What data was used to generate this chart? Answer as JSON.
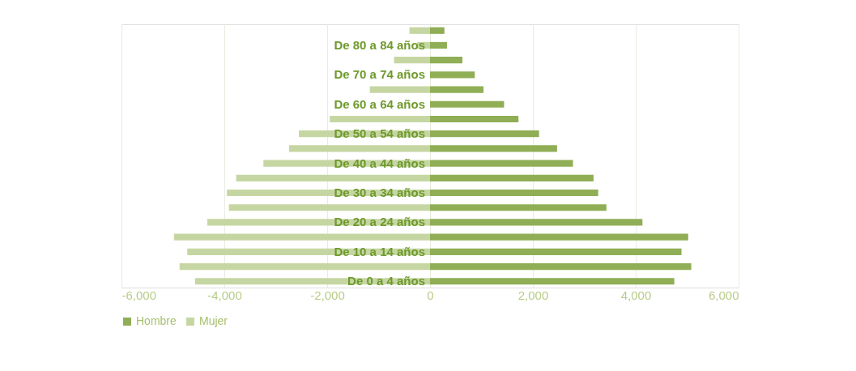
{
  "chart_data": {
    "type": "bar",
    "orientation": "horizontal",
    "categories": [
      null,
      "De 80 a 84 años",
      null,
      "De 70 a 74 años",
      null,
      "De 60 a 64 años",
      null,
      "De 50 a 54 años",
      null,
      "De 40 a 44 años",
      null,
      "De 30 a 34 años",
      null,
      "De 20 a 24 años",
      null,
      "De 10 a 14 años",
      null,
      "De 0 a 4 años"
    ],
    "series": [
      {
        "name": "Hombre",
        "color": "#8fae55",
        "values": [
          280,
          330,
          630,
          870,
          1040,
          1440,
          1720,
          2120,
          2470,
          2780,
          3180,
          3270,
          3430,
          4130,
          5020,
          4890,
          5080,
          4750
        ]
      },
      {
        "name": "Mujer",
        "color": "#c6d6a2",
        "values": [
          -400,
          -250,
          -700,
          null,
          -1170,
          null,
          -1950,
          -2550,
          -2740,
          -3240,
          -3770,
          -3950,
          -3910,
          -4330,
          -4980,
          -4720,
          -4870,
          -4570
        ]
      }
    ],
    "xlim": [
      -6000,
      6000
    ],
    "xticks": [
      {
        "value": -6000,
        "label": "-6,000"
      },
      {
        "value": -4000,
        "label": "-4,000"
      },
      {
        "value": -2000,
        "label": "-2,000"
      },
      0,
      {
        "value": 2000,
        "label": "2,000"
      },
      {
        "value": 4000,
        "label": "4,000"
      },
      {
        "value": 6000,
        "label": "6,000"
      }
    ],
    "stacked": true,
    "grid": "x",
    "legend": "bottom"
  }
}
